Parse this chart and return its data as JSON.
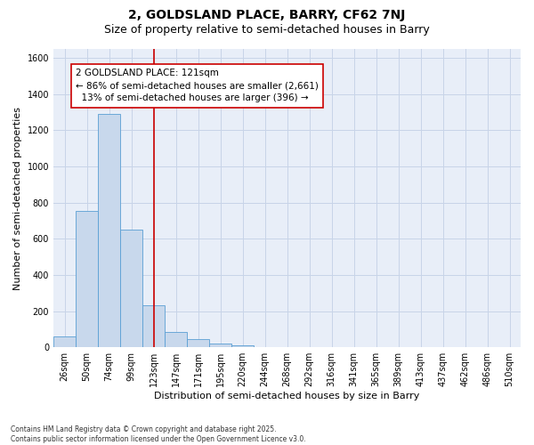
{
  "title_line1": "2, GOLDSLAND PLACE, BARRY, CF62 7NJ",
  "title_line2": "Size of property relative to semi-detached houses in Barry",
  "xlabel": "Distribution of semi-detached houses by size in Barry",
  "ylabel": "Number of semi-detached properties",
  "bar_color": "#c8d8ec",
  "bar_edge_color": "#5a9fd4",
  "grid_color": "#c8d4e8",
  "background_color": "#e8eef8",
  "annotation_text": "2 GOLDSLAND PLACE: 121sqm\n← 86% of semi-detached houses are smaller (2,661)\n  13% of semi-detached houses are larger (396) →",
  "vline_x": 4,
  "vline_color": "#cc0000",
  "annotation_box_color": "#cc0000",
  "categories": [
    "26sqm",
    "50sqm",
    "74sqm",
    "99sqm",
    "123sqm",
    "147sqm",
    "171sqm",
    "195sqm",
    "220sqm",
    "244sqm",
    "268sqm",
    "292sqm",
    "316sqm",
    "341sqm",
    "365sqm",
    "389sqm",
    "413sqm",
    "437sqm",
    "462sqm",
    "486sqm",
    "510sqm"
  ],
  "values": [
    60,
    755,
    1290,
    650,
    230,
    85,
    45,
    20,
    10,
    0,
    0,
    0,
    0,
    0,
    0,
    0,
    0,
    0,
    0,
    0,
    0
  ],
  "ylim": [
    0,
    1650
  ],
  "yticks": [
    0,
    200,
    400,
    600,
    800,
    1000,
    1200,
    1400,
    1600
  ],
  "footnote": "Contains HM Land Registry data © Crown copyright and database right 2025.\nContains public sector information licensed under the Open Government Licence v3.0.",
  "title_fontsize": 10,
  "subtitle_fontsize": 9,
  "label_fontsize": 8,
  "tick_fontsize": 7,
  "annotation_fontsize": 7.5
}
